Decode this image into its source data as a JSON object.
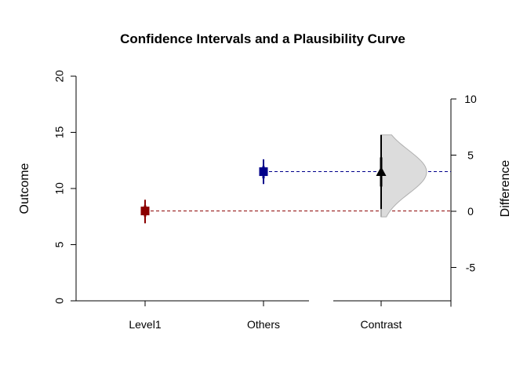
{
  "chart_data": {
    "type": "scatter",
    "title": "Confidence Intervals and a Plausibility Curve",
    "ylabel_left": "Outcome",
    "ylabel_right": "Difference",
    "categories": [
      "Level1",
      "Others",
      "Contrast"
    ],
    "left_axis": {
      "ylim": [
        0,
        20
      ],
      "ticks": [
        "0",
        "5",
        "10",
        "15",
        "20"
      ]
    },
    "right_axis": {
      "ylim": [
        -5,
        10
      ],
      "ticks": [
        "-5",
        "0",
        "5",
        "10"
      ]
    },
    "grid": false,
    "points": [
      {
        "category": "Level1",
        "estimate": 8.0,
        "ci_outer": [
          6.9,
          9.0
        ],
        "ci_inner": [
          7.5,
          8.5
        ],
        "color": "#8b0000",
        "marker": "square"
      },
      {
        "category": "Others",
        "estimate": 11.5,
        "ci_outer": [
          10.4,
          12.6
        ],
        "ci_inner": [
          10.9,
          12.0
        ],
        "color": "#00008b",
        "marker": "square"
      }
    ],
    "contrast": {
      "category": "Contrast",
      "estimate": 3.5,
      "ci_outer": [
        0.2,
        6.8
      ],
      "ci_inner": [
        2.2,
        4.8
      ],
      "curve_range": [
        -0.5,
        6.8
      ],
      "color": "#000000",
      "curve_fill": "#dcdcdc",
      "marker": "triangle"
    },
    "reference_lines": [
      {
        "from": "Level1",
        "value": 8.0,
        "color": "#8b0000",
        "style": "dashed"
      },
      {
        "from": "Others",
        "value": 11.5,
        "color": "#00008b",
        "style": "dashed"
      }
    ]
  }
}
